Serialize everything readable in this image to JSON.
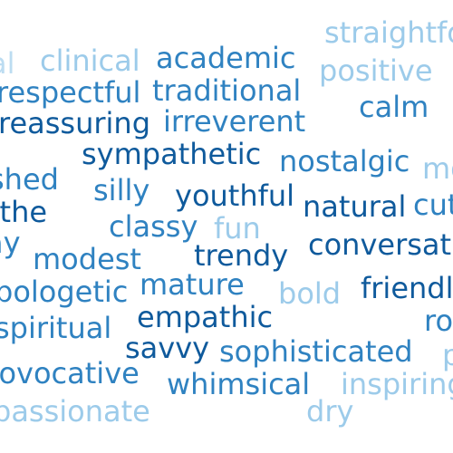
{
  "words": {
    "straightforward": {
      "text": "straightfo",
      "color": "#9ccbea"
    },
    "al": {
      "text": "al",
      "color": "#bcdcf1"
    },
    "clinical": {
      "text": "clinical",
      "color": "#9ccbea"
    },
    "academic": {
      "text": "academic",
      "color": "#2f82c1"
    },
    "positive": {
      "text": "positive",
      "color": "#9ccbea"
    },
    "respectful": {
      "text": "respectful",
      "color": "#2f82c1"
    },
    "traditional": {
      "text": "traditional",
      "color": "#2f82c1"
    },
    "calm": {
      "text": "calm",
      "color": "#2f82c1"
    },
    "reassuring": {
      "text": "reassuring",
      "color": "#0f5a9c"
    },
    "irreverent": {
      "text": "irreverent",
      "color": "#2f82c1"
    },
    "sympathetic": {
      "text": "sympathetic",
      "color": "#0f5a9c"
    },
    "nostalgic": {
      "text": "nostalgic",
      "color": "#2f82c1"
    },
    "mo": {
      "text": "mo",
      "color": "#9ccbea"
    },
    "shed": {
      "text": "shed",
      "color": "#2f82c1"
    },
    "silly": {
      "text": "silly",
      "color": "#2f82c1"
    },
    "youthful": {
      "text": "youthful",
      "color": "#0f5a9c"
    },
    "natural": {
      "text": "natural",
      "color": "#0f5a9c"
    },
    "cut": {
      "text": "cut",
      "color": "#2f82c1"
    },
    "the": {
      "text": "-the",
      "color": "#0f5a9c"
    },
    "classy": {
      "text": "classy",
      "color": "#2f82c1"
    },
    "fun": {
      "text": "fun",
      "color": "#9ccbea"
    },
    "ay": {
      "text": "ay",
      "color": "#2f82c1"
    },
    "trendy": {
      "text": "trendy",
      "color": "#0f5a9c"
    },
    "conversational": {
      "text": "conversat",
      "color": "#0f5a9c"
    },
    "modest": {
      "text": "modest",
      "color": "#2f82c1"
    },
    "mature": {
      "text": "mature",
      "color": "#2f82c1"
    },
    "bold": {
      "text": "bold",
      "color": "#9ccbea"
    },
    "friendly": {
      "text": "friendl",
      "color": "#0f5a9c"
    },
    "apologetic": {
      "text": "pologetic",
      "color": "#2f82c1"
    },
    "empathic": {
      "text": "empathic",
      "color": "#0f5a9c"
    },
    "ro": {
      "text": "ro",
      "color": "#2f82c1"
    },
    "spiritual": {
      "text": "spiritual",
      "color": "#2f82c1"
    },
    "savvy": {
      "text": "savvy",
      "color": "#0f5a9c"
    },
    "sophisticated": {
      "text": "sophisticated",
      "color": "#2f82c1"
    },
    "p": {
      "text": "p",
      "color": "#9ccbea"
    },
    "provocative": {
      "text": "rovocative",
      "color": "#2f82c1"
    },
    "whimsical": {
      "text": "whimsical",
      "color": "#2f82c1"
    },
    "inspiring": {
      "text": "inspiring",
      "color": "#9ccbea"
    },
    "passionate": {
      "text": "passionate",
      "color": "#9ccbea"
    },
    "dry": {
      "text": "dry",
      "color": "#9ccbea"
    }
  }
}
